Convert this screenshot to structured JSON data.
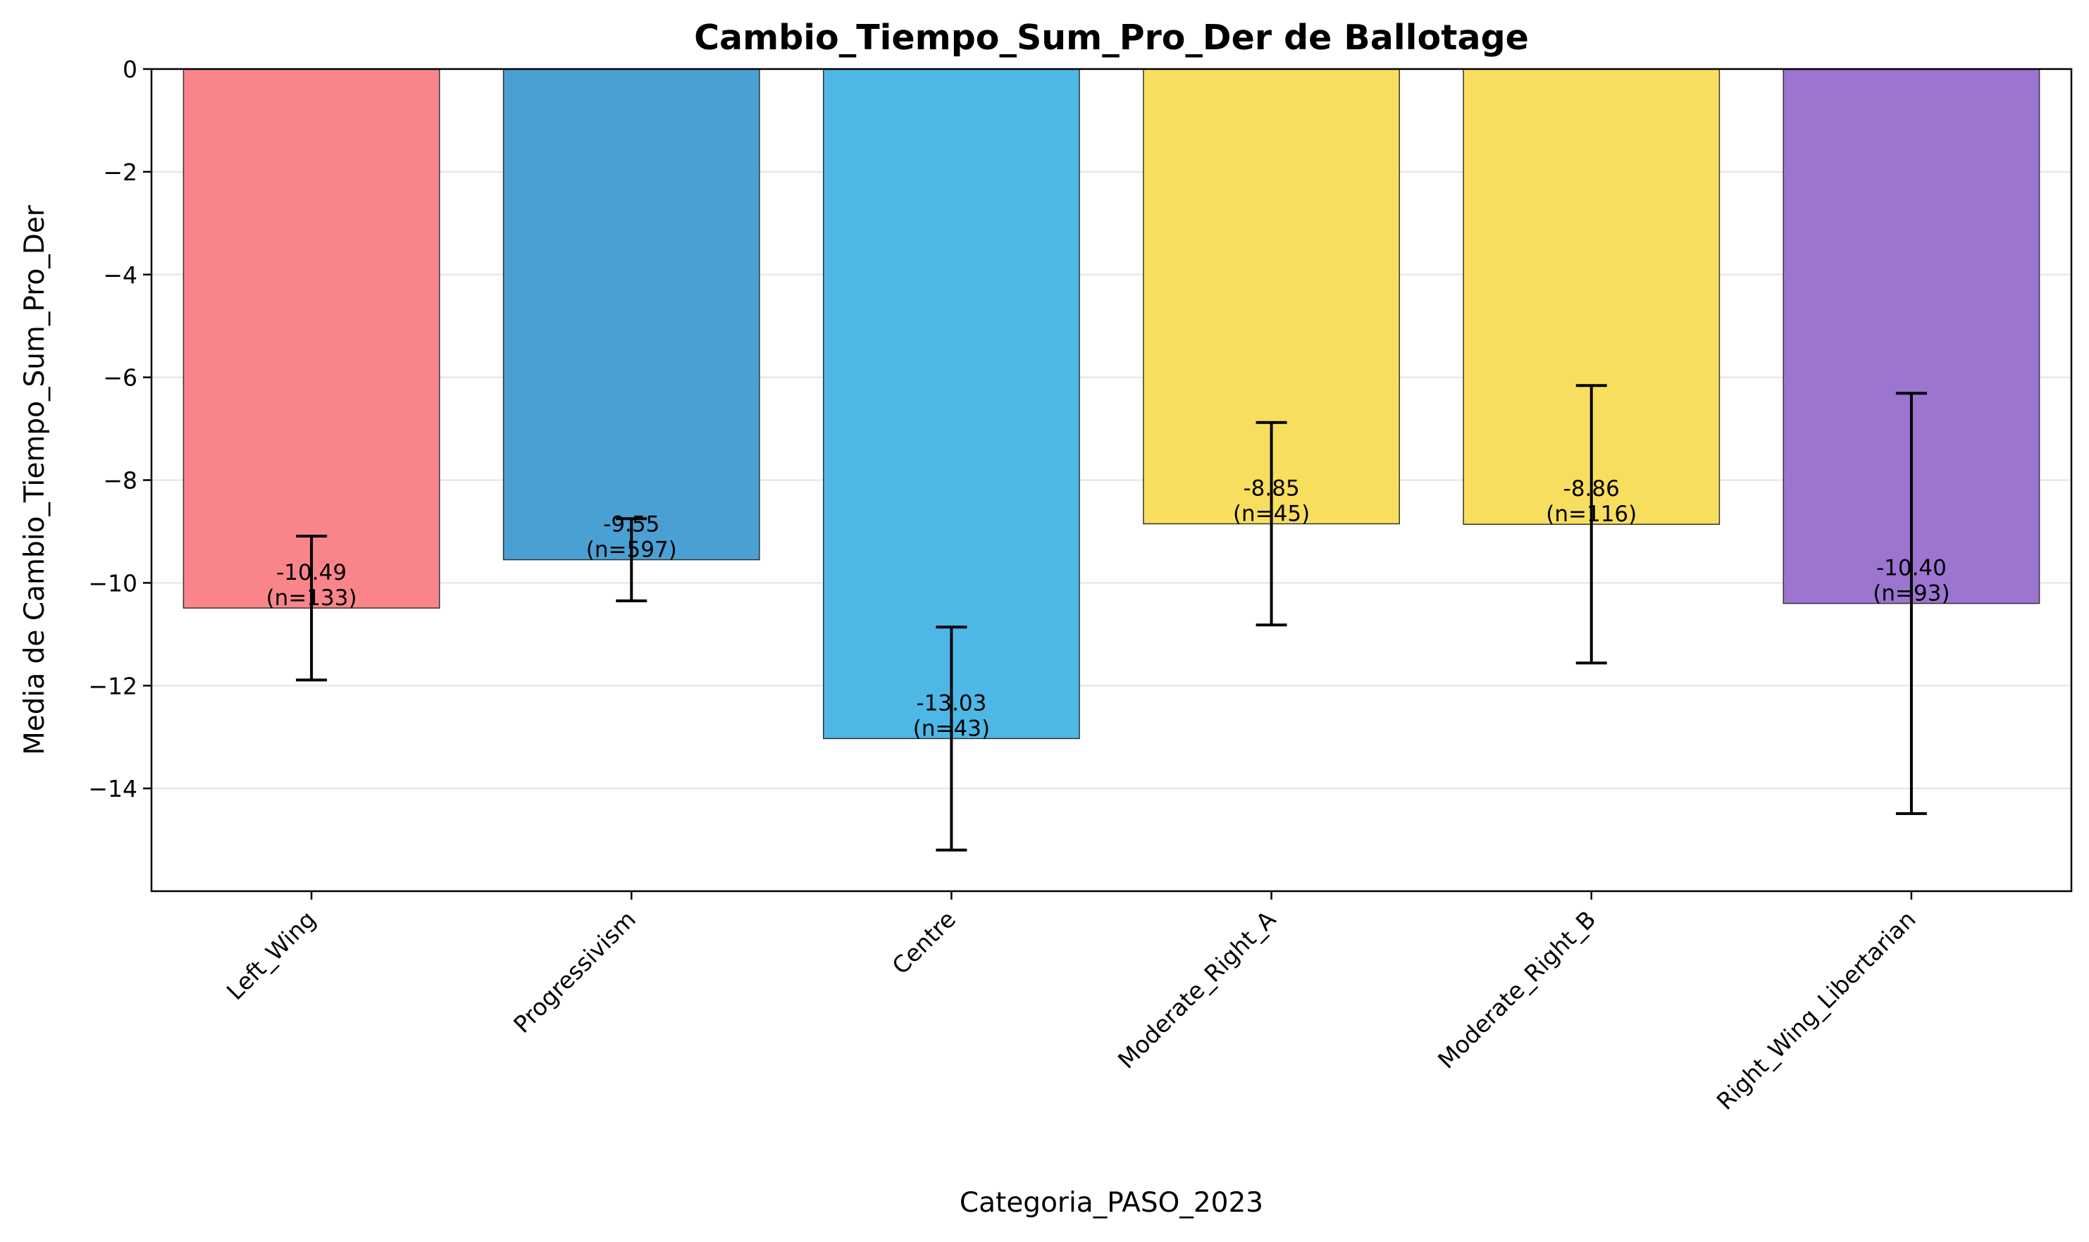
{
  "chart_data": {
    "type": "bar",
    "title": "Cambio_Tiempo_Sum_Pro_Der de Ballotage",
    "xlabel": "Categoria_PASO_2023",
    "ylabel": "Media de Cambio_Tiempo_Sum_Pro_Der",
    "ylim": [
      -16,
      0
    ],
    "yticks": [
      0,
      -2,
      -4,
      -6,
      -8,
      -10,
      -12,
      -14
    ],
    "ytick_labels": [
      "0",
      "−2",
      "−4",
      "−6",
      "−8",
      "−10",
      "−12",
      "−14"
    ],
    "grid": "horizontal",
    "categories": [
      "Left_Wing",
      "Progressivism",
      "Centre",
      "Moderate_Right_A",
      "Moderate_Right_B",
      "Right_Wing_Libertarian"
    ],
    "values": [
      -10.49,
      -9.55,
      -13.03,
      -8.85,
      -8.86,
      -10.4
    ],
    "errors": [
      1.4,
      0.8,
      2.17,
      1.97,
      2.7,
      4.09
    ],
    "n": [
      133,
      597,
      43,
      45,
      116,
      93
    ],
    "value_labels": [
      "-10.49",
      "-9.55",
      "-13.03",
      "-8.85",
      "-8.86",
      "-10.40"
    ],
    "n_labels": [
      "(n=133)",
      "(n=597)",
      "(n=43)",
      "(n=45)",
      "(n=116)",
      "(n=93)"
    ],
    "colors": [
      "#f9858b",
      "#4aa0d2",
      "#4db8e6",
      "#f8de5e",
      "#f8de5e",
      "#9b75d0"
    ]
  }
}
